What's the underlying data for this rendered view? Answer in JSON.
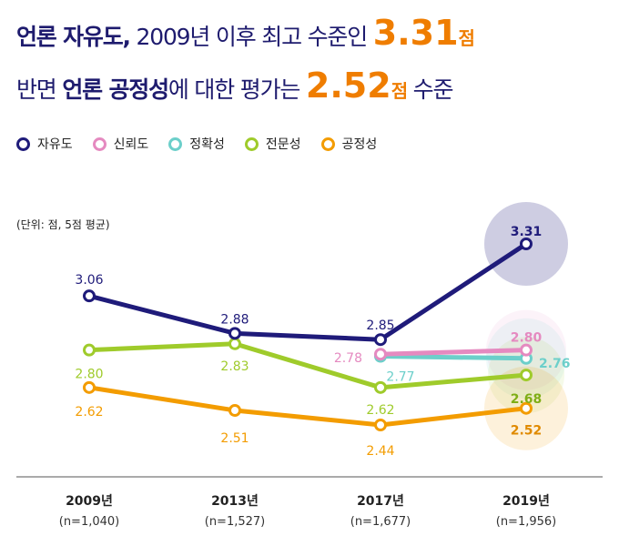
{
  "headline": {
    "line1_bold": "언론 자유도,",
    "line1_text": " 2009년 이후 최고 수준인 ",
    "line1_value": "3.31",
    "line1_unit": "점",
    "line2_text1": "반면 ",
    "line2_bold": "언론 공정성",
    "line2_text2": "에 대한 평가는 ",
    "line2_value": "2.52",
    "line2_unit": "점",
    "line2_text3": " 수준"
  },
  "unit_note": "(단위: 점, 5점 평균)",
  "chart_data": {
    "type": "line",
    "categories": [
      "2009년",
      "2013년",
      "2017년",
      "2019년"
    ],
    "sample_sizes": [
      "(n=1,040)",
      "(n=1,527)",
      "(n=1,677)",
      "(n=1,956)"
    ],
    "ylim": [
      2.4,
      3.35
    ],
    "series": [
      {
        "name": "자유도",
        "color": "#1f1b7a",
        "values": [
          3.06,
          2.88,
          2.85,
          3.31
        ],
        "labels": [
          "3.06",
          "2.88",
          "2.85",
          "3.31"
        ]
      },
      {
        "name": "신뢰도",
        "color": "#e58ac0",
        "values": [
          null,
          null,
          2.78,
          2.8
        ],
        "labels": [
          "",
          "",
          "2.78",
          "2.80"
        ]
      },
      {
        "name": "정확성",
        "color": "#6ccfca",
        "values": [
          null,
          null,
          2.77,
          2.76
        ],
        "labels": [
          "",
          "",
          "2.77",
          "2.76"
        ]
      },
      {
        "name": "전문성",
        "color": "#9fcb2b",
        "values": [
          2.8,
          2.83,
          2.62,
          2.68
        ],
        "labels": [
          "2.80",
          "2.83",
          "2.62",
          "2.68"
        ]
      },
      {
        "name": "공정성",
        "color": "#f39c00",
        "values": [
          2.62,
          2.51,
          2.44,
          2.52
        ],
        "labels": [
          "2.62",
          "2.51",
          "2.44",
          "2.52"
        ]
      }
    ]
  },
  "colors": {
    "headline": "#1e1b6e",
    "accent": "#ef7d00",
    "axis": "#555555"
  }
}
